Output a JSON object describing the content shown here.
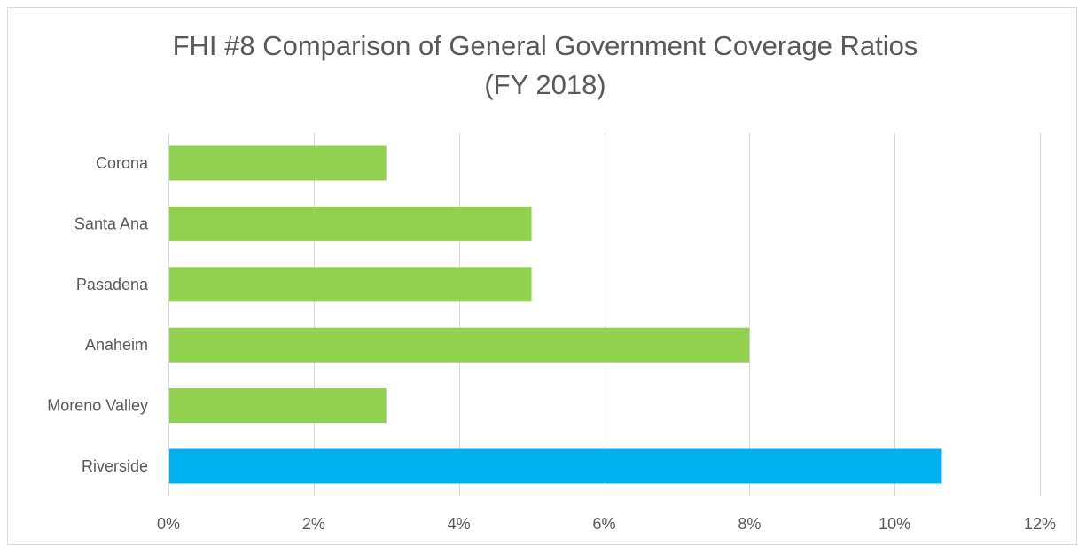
{
  "chart_data": {
    "type": "bar",
    "orientation": "horizontal",
    "title": "FHI #8 Comparison of General Government Coverage Ratios",
    "subtitle": "(FY 2018)",
    "xlabel": "",
    "ylabel": "",
    "categories": [
      "Corona",
      "Santa Ana",
      "Pasadena",
      "Anaheim",
      "Moreno Valley",
      "Riverside"
    ],
    "values": [
      3,
      5,
      5,
      8,
      3,
      10.65
    ],
    "bar_colors": [
      "#92d050",
      "#92d050",
      "#92d050",
      "#92d050",
      "#92d050",
      "#00b0f0"
    ],
    "xlim": [
      0,
      12
    ],
    "x_ticks": [
      "0%",
      "2%",
      "4%",
      "6%",
      "8%",
      "10%",
      "12%"
    ],
    "x_tick_values": [
      0,
      2,
      4,
      6,
      8,
      10,
      12
    ],
    "grid": "vertical",
    "legend": "none",
    "gridline_color": "#d9d9d9",
    "text_color": "#595959"
  }
}
